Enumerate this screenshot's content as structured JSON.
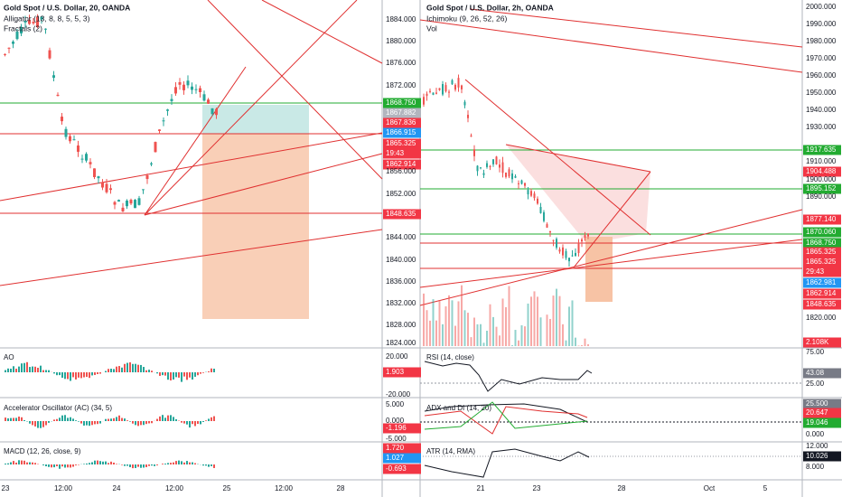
{
  "left": {
    "title": "Gold Spot / U.S. Dollar, 20, OANDA",
    "indicators": [
      "Alligator (13, 8, 8, 5, 5, 3)",
      "Fractals (2)"
    ],
    "axis": [
      {
        "text": "1884.000"
      },
      {
        "text": "1880.000"
      },
      {
        "text": "1876.000"
      },
      {
        "text": "1872.000"
      },
      {
        "text": "1868.750",
        "color": "#22ab31"
      },
      {
        "text": "1867.882",
        "color": "#b2b5be"
      },
      {
        "text": "1867.836",
        "color": "#f23645"
      },
      {
        "text": "1866.915",
        "color": "#2196f3"
      },
      {
        "text": "1865.325",
        "color": "#f23645"
      },
      {
        "text": "19:43",
        "color": "#f23645"
      },
      {
        "text": "1862.914",
        "color": "#f23645"
      },
      {
        "text": "1856.000"
      },
      {
        "text": "1852.000"
      },
      {
        "text": "1848.635",
        "color": "#f23645"
      },
      {
        "text": "1844.000"
      },
      {
        "text": "1840.000"
      },
      {
        "text": "1836.000"
      },
      {
        "text": "1832.000"
      },
      {
        "text": "1828.000"
      },
      {
        "text": "1824.000"
      }
    ],
    "panes": [
      {
        "name": "AO",
        "axis": [
          {
            "text": "20.000"
          },
          {
            "text": "1.903",
            "color": "#f23645"
          },
          {
            "text": "-20.000"
          }
        ]
      },
      {
        "name": "Accelerator Oscillator (AC) (34, 5)",
        "axis": [
          {
            "text": "5.000"
          },
          {
            "text": "0.000"
          },
          {
            "text": "-1.196",
            "color": "#f23645"
          },
          {
            "text": "-5.000"
          }
        ]
      },
      {
        "name": "MACD (12, 26, close, 9)",
        "axis": [
          {
            "text": "1.720",
            "color": "#f23645"
          },
          {
            "text": "1.027",
            "color": "#2196f3"
          },
          {
            "text": "-0.693",
            "color": "#f23645"
          }
        ]
      }
    ],
    "dates": [
      "23",
      "12:00",
      "24",
      "12:00",
      "25",
      "12:00",
      "28"
    ]
  },
  "right": {
    "title": "Gold Spot / U.S. Dollar, 2h, OANDA",
    "indicators": [
      "Ichimoku (9, 26, 52, 26)",
      "Vol"
    ],
    "axis": [
      {
        "text": "2000.000"
      },
      {
        "text": "1990.000"
      },
      {
        "text": "1980.000"
      },
      {
        "text": "1970.000"
      },
      {
        "text": "1960.000"
      },
      {
        "text": "1950.000"
      },
      {
        "text": "1940.000"
      },
      {
        "text": "1930.000"
      },
      {
        "text": "1917.635",
        "color": "#22ab31"
      },
      {
        "text": "1910.000"
      },
      {
        "text": "1904.488",
        "color": "#f23645"
      },
      {
        "text": "1900.000"
      },
      {
        "text": "1895.152",
        "color": "#22ab31"
      },
      {
        "text": "1890.000"
      },
      {
        "text": "1877.140",
        "color": "#f23645"
      },
      {
        "text": "1870.060",
        "color": "#22ab31"
      },
      {
        "text": "1868.750",
        "color": "#22ab31"
      },
      {
        "text": "1865.325",
        "color": "#f23645"
      },
      {
        "text": "1865.325",
        "color": "#f23645"
      },
      {
        "text": "29:43",
        "color": "#f23645"
      },
      {
        "text": "1862.981",
        "color": "#2196f3"
      },
      {
        "text": "1862.914",
        "color": "#f23645"
      },
      {
        "text": "1848.635",
        "color": "#f23645"
      },
      {
        "text": "1820.000"
      },
      {
        "text": "2.108K",
        "color": "#f23645"
      }
    ],
    "panes": [
      {
        "name": "RSI (14, close)",
        "axis": [
          {
            "text": "75.00"
          },
          {
            "text": "43.08",
            "color": "#787b86"
          },
          {
            "text": "25.00"
          }
        ]
      },
      {
        "name": "ADX and DI (14, 20)",
        "axis": [
          {
            "text": "25.500",
            "color": "#787b86"
          },
          {
            "text": "20.647",
            "color": "#f23645"
          },
          {
            "text": "19.046",
            "color": "#22ab31"
          },
          {
            "text": "0.000"
          }
        ]
      },
      {
        "name": "ATR (14, RMA)",
        "axis": [
          {
            "text": "12.000"
          },
          {
            "text": "10.026",
            "color": "#131722"
          },
          {
            "text": "8.000"
          }
        ]
      }
    ],
    "dates": [
      "21",
      "23",
      "28",
      "Oct",
      "5"
    ]
  }
}
